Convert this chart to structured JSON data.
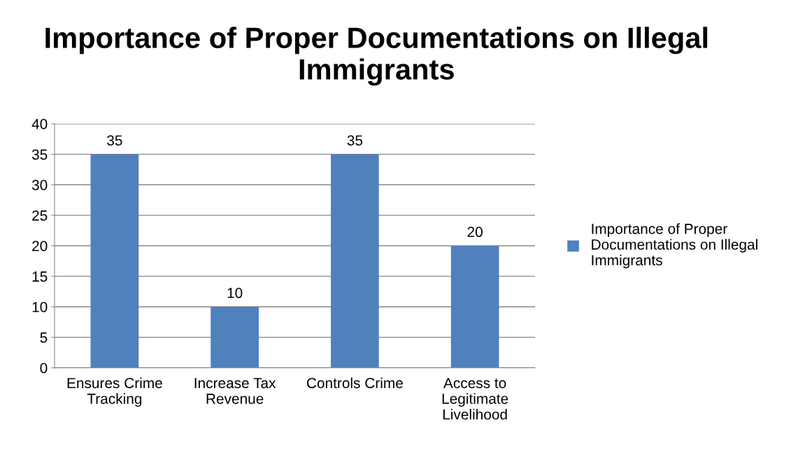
{
  "chart_data": {
    "type": "bar",
    "title": "Importance of Proper Documentations on Illegal Immigrants",
    "categories": [
      "Ensures Crime Tracking",
      "Increase Tax Revenue",
      "Controls Crime",
      "Access to Legitimate Livelihood"
    ],
    "series": [
      {
        "name": "Importance of Proper Documentations on Illegal Immigrants",
        "color": "#4f81bd",
        "values": [
          35,
          10,
          35,
          20
        ]
      }
    ],
    "ylim": [
      0,
      40
    ],
    "yticks": [
      0,
      5,
      10,
      15,
      20,
      25,
      30,
      35,
      40
    ],
    "grid": "y",
    "legend": "right",
    "data_labels": true
  }
}
